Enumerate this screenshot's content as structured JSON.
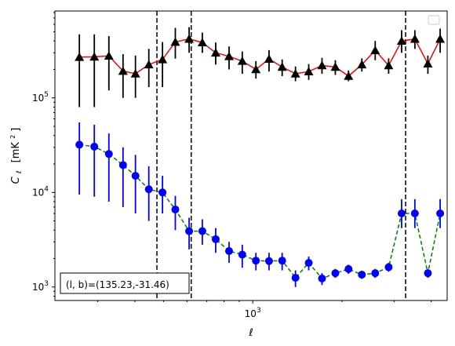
{
  "chart_data": {
    "type": "scatter",
    "title": "",
    "xlabel": "ℓ",
    "ylabel": "C_ℓ  [mK²]",
    "ylabel_main": "C",
    "ylabel_sub": "ℓ",
    "ylabel_unit": "[mK",
    "ylabel_unit_sup": "2",
    "ylabel_unit_close": "]",
    "xscale": "log",
    "yscale": "log",
    "xlim": [
      215,
      4530
    ],
    "ylim": [
      720,
      830000
    ],
    "x_tick_labels": [
      {
        "value": 1000,
        "base": "10",
        "exp": "3"
      }
    ],
    "y_tick_labels": [
      {
        "value": 1000,
        "base": "10",
        "exp": "3"
      },
      {
        "value": 10000,
        "base": "10",
        "exp": "4"
      },
      {
        "value": 100000,
        "base": "10",
        "exp": "5"
      }
    ],
    "vertical_lines": [
      475,
      620,
      3280
    ],
    "annotation": "(l, b)=(135.23,-31.46)",
    "legend": "top-right",
    "series": [
      {
        "marker": "triangle",
        "color": "#000000",
        "line_color": "#ff0000",
        "line_style": "solid",
        "x": [
          260,
          292,
          327,
          365,
          402,
          446,
          496,
          548,
          610,
          676,
          750,
          832,
          922,
          1025,
          1135,
          1257,
          1394,
          1545,
          1713,
          1900,
          2105,
          2335,
          2590,
          2875,
          3180,
          3525,
          3900,
          4290
        ],
        "y": [
          270000,
          272000,
          278000,
          192000,
          180000,
          225000,
          255000,
          390000,
          420000,
          385000,
          300000,
          275000,
          245000,
          200000,
          258000,
          212000,
          180000,
          190000,
          220000,
          212000,
          170000,
          225000,
          318000,
          220000,
          400000,
          420000,
          230000,
          420000
        ],
        "y_low": [
          80000,
          80000,
          120000,
          100000,
          100000,
          130000,
          130000,
          260000,
          300000,
          300000,
          225000,
          200000,
          180000,
          160000,
          190000,
          170000,
          150000,
          155000,
          180000,
          175000,
          150000,
          190000,
          250000,
          180000,
          300000,
          330000,
          180000,
          300000
        ],
        "y_high": [
          470000,
          470000,
          450000,
          290000,
          280000,
          330000,
          390000,
          550000,
          560000,
          490000,
          385000,
          350000,
          310000,
          245000,
          320000,
          255000,
          215000,
          228000,
          265000,
          250000,
          195000,
          262000,
          400000,
          262000,
          520000,
          520000,
          280000,
          540000
        ]
      },
      {
        "marker": "circle",
        "color": "#0000ff",
        "line_color": "#008000",
        "line_style": "dashed",
        "x": [
          260,
          292,
          327,
          365,
          402,
          446,
          496,
          548,
          610,
          676,
          750,
          832,
          922,
          1025,
          1135,
          1257,
          1394,
          1545,
          1713,
          1900,
          2105,
          2335,
          2590,
          2875,
          3180,
          3525,
          3900,
          4290
        ],
        "y": [
          32000,
          30500,
          25500,
          19500,
          15000,
          10800,
          10000,
          6600,
          3900,
          3900,
          3200,
          2400,
          2200,
          1900,
          1880,
          1900,
          1250,
          1800,
          1230,
          1400,
          1550,
          1350,
          1400,
          1620,
          6000,
          6000,
          1400,
          6000
        ],
        "y_low": [
          9500,
          9000,
          8000,
          7000,
          6000,
          5000,
          6000,
          4000,
          2500,
          2800,
          2300,
          1800,
          1600,
          1500,
          1500,
          1500,
          1000,
          1500,
          1050,
          1250,
          1380,
          1220,
          1250,
          1450,
          4200,
          4200,
          1250,
          4200
        ],
        "y_high": [
          55000,
          52000,
          42000,
          30000,
          25000,
          19000,
          15000,
          9200,
          5400,
          5200,
          4200,
          3000,
          2800,
          2300,
          2300,
          2300,
          1500,
          2100,
          1400,
          1550,
          1720,
          1480,
          1550,
          1800,
          8500,
          8500,
          1550,
          8500
        ]
      }
    ]
  }
}
